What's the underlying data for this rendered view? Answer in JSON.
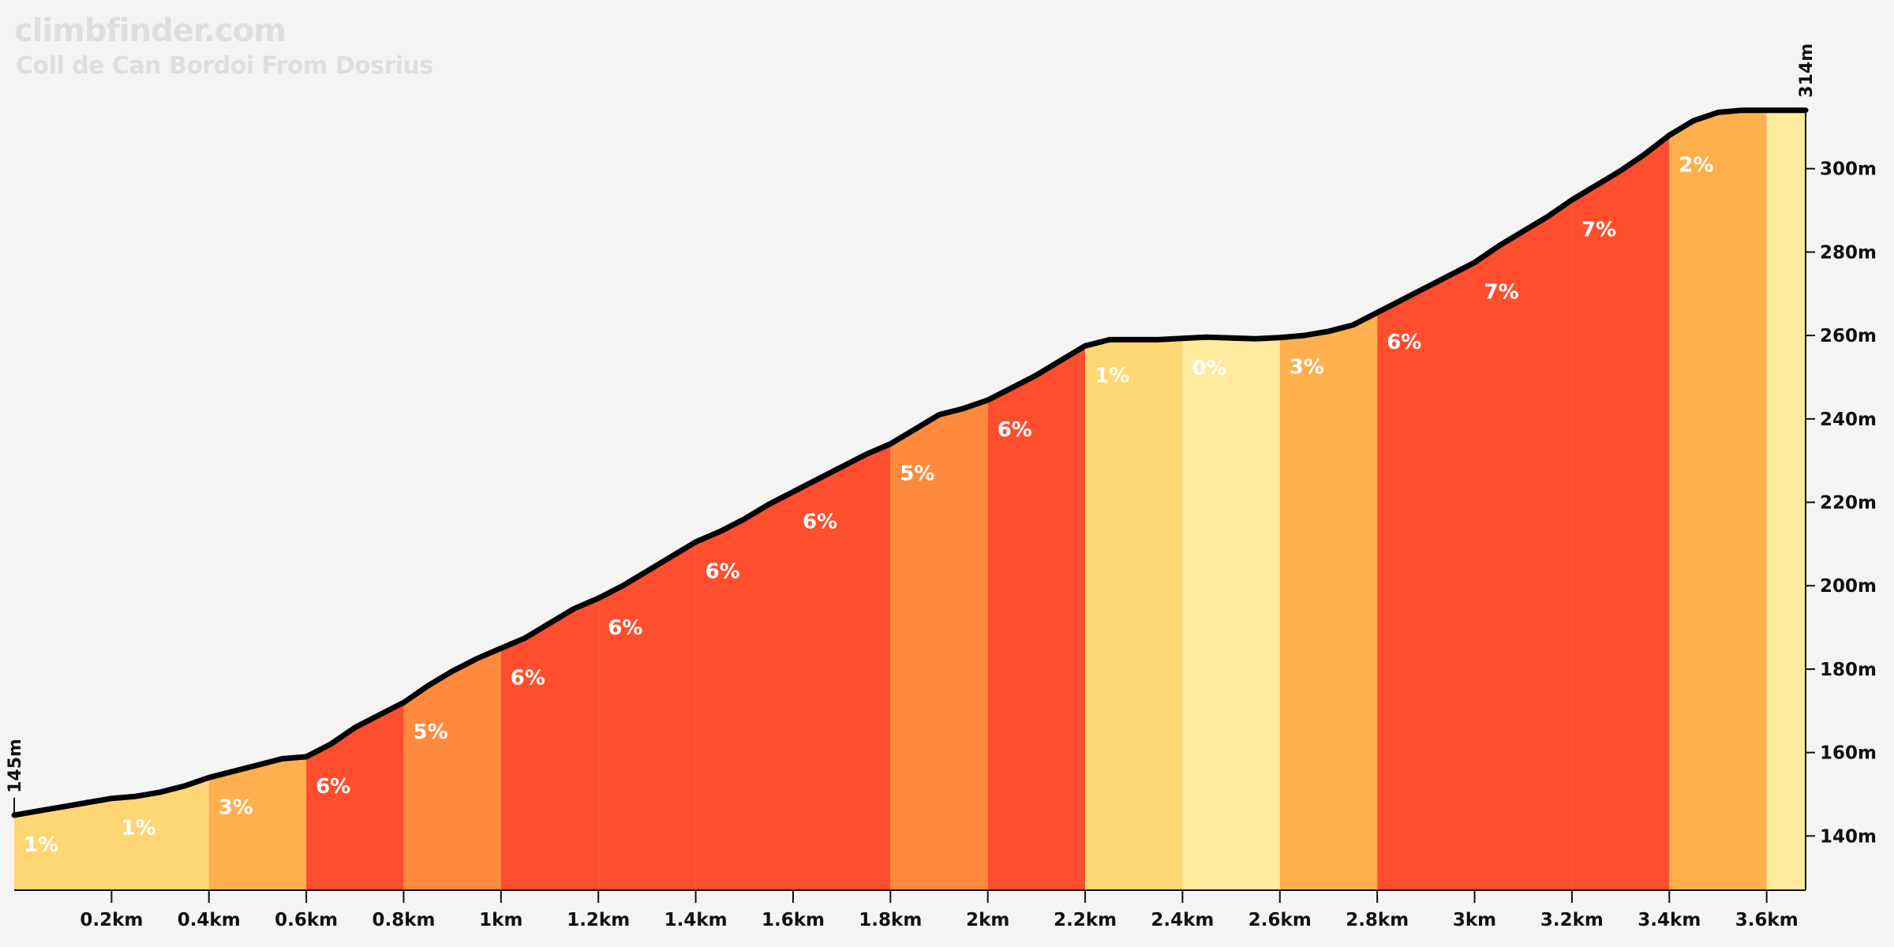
{
  "brand": "climbfinder.com",
  "subtitle": "Coll de Can Bordoi From Dosrius",
  "colors": {
    "background": "#f4f4f4",
    "profile_line": "#000000",
    "grade_colors": {
      "0": "#ffeb9d",
      "1": "#ffd674",
      "2": "#ffaf4d",
      "3": "#ffaf4d",
      "5": "#ff8a3d",
      "6": "#ff4e2e",
      "7": "#ff4e2e"
    }
  },
  "chart_data": {
    "type": "area",
    "title": "Coll de Can Bordoi From Dosrius",
    "xlabel": "",
    "ylabel": "",
    "x_unit": "km",
    "y_unit": "m",
    "xlim": [
      0,
      3.68
    ],
    "ylim": [
      127,
      320
    ],
    "x_ticks": [
      0.2,
      0.4,
      0.6,
      0.8,
      1,
      1.2,
      1.4,
      1.6,
      1.8,
      2,
      2.2,
      2.4,
      2.6,
      2.8,
      3,
      3.2,
      3.4,
      3.6
    ],
    "x_tick_labels": [
      "0.2km",
      "0.4km",
      "0.6km",
      "0.8km",
      "1km",
      "1.2km",
      "1.4km",
      "1.6km",
      "1.8km",
      "2km",
      "2.2km",
      "2.4km",
      "2.6km",
      "2.8km",
      "3km",
      "3.2km",
      "3.4km",
      "3.6km"
    ],
    "y_ticks": [
      140,
      160,
      180,
      200,
      220,
      240,
      260,
      280,
      300
    ],
    "y_tick_labels": [
      "140m",
      "160m",
      "180m",
      "200m",
      "220m",
      "240m",
      "260m",
      "280m",
      "300m"
    ],
    "start_label": "145m",
    "end_label": "314m",
    "segments": [
      {
        "start": 0.0,
        "end": 0.2,
        "grade": 1,
        "label": "1%"
      },
      {
        "start": 0.2,
        "end": 0.4,
        "grade": 1,
        "label": "1%"
      },
      {
        "start": 0.4,
        "end": 0.6,
        "grade": 3,
        "label": "3%"
      },
      {
        "start": 0.6,
        "end": 0.8,
        "grade": 6,
        "label": "6%"
      },
      {
        "start": 0.8,
        "end": 1.0,
        "grade": 5,
        "label": "5%"
      },
      {
        "start": 1.0,
        "end": 1.2,
        "grade": 6,
        "label": "6%"
      },
      {
        "start": 1.2,
        "end": 1.4,
        "grade": 6,
        "label": "6%"
      },
      {
        "start": 1.4,
        "end": 1.6,
        "grade": 6,
        "label": "6%"
      },
      {
        "start": 1.6,
        "end": 1.8,
        "grade": 6,
        "label": "6%"
      },
      {
        "start": 1.8,
        "end": 2.0,
        "grade": 5,
        "label": "5%"
      },
      {
        "start": 2.0,
        "end": 2.2,
        "grade": 6,
        "label": "6%"
      },
      {
        "start": 2.2,
        "end": 2.4,
        "grade": 1,
        "label": "1%"
      },
      {
        "start": 2.4,
        "end": 2.6,
        "grade": 0,
        "label": "0%"
      },
      {
        "start": 2.6,
        "end": 2.8,
        "grade": 3,
        "label": "3%"
      },
      {
        "start": 2.8,
        "end": 3.0,
        "grade": 6,
        "label": "6%"
      },
      {
        "start": 3.0,
        "end": 3.2,
        "grade": 7,
        "label": "7%"
      },
      {
        "start": 3.2,
        "end": 3.4,
        "grade": 7,
        "label": "7%"
      },
      {
        "start": 3.4,
        "end": 3.6,
        "grade": 2,
        "label": "2%"
      },
      {
        "start": 3.6,
        "end": 3.68,
        "grade": 0,
        "label": ""
      }
    ],
    "profile": {
      "x": [
        0.0,
        0.05,
        0.1,
        0.15,
        0.2,
        0.25,
        0.3,
        0.35,
        0.4,
        0.45,
        0.5,
        0.55,
        0.6,
        0.65,
        0.7,
        0.75,
        0.8,
        0.85,
        0.9,
        0.95,
        1.0,
        1.05,
        1.1,
        1.15,
        1.2,
        1.25,
        1.3,
        1.35,
        1.4,
        1.45,
        1.5,
        1.55,
        1.6,
        1.65,
        1.7,
        1.75,
        1.8,
        1.85,
        1.9,
        1.95,
        2.0,
        2.05,
        2.1,
        2.15,
        2.2,
        2.25,
        2.3,
        2.35,
        2.4,
        2.45,
        2.5,
        2.55,
        2.6,
        2.65,
        2.7,
        2.75,
        2.8,
        2.85,
        2.9,
        2.95,
        3.0,
        3.05,
        3.1,
        3.15,
        3.2,
        3.25,
        3.3,
        3.35,
        3.4,
        3.45,
        3.5,
        3.55,
        3.6,
        3.65,
        3.68
      ],
      "y": [
        145,
        146,
        147,
        148,
        149,
        149.5,
        150.5,
        152,
        154,
        155.5,
        157,
        158.5,
        159,
        162,
        166,
        169,
        172,
        176,
        179.5,
        182.5,
        185,
        187.5,
        191,
        194.5,
        197,
        200,
        203.5,
        207,
        210.5,
        213,
        216,
        219.5,
        222.5,
        225.5,
        228.5,
        231.5,
        234,
        237.5,
        241,
        242.5,
        244.5,
        247.5,
        250.5,
        254,
        257.5,
        259,
        259,
        259,
        259.3,
        259.6,
        259.4,
        259.2,
        259.5,
        260,
        261,
        262.5,
        265.5,
        268.5,
        271.5,
        274.5,
        277.5,
        281.5,
        285,
        288.5,
        292.5,
        296,
        299.5,
        303.5,
        308,
        311.5,
        313.5,
        314,
        314,
        314,
        314
      ]
    }
  }
}
